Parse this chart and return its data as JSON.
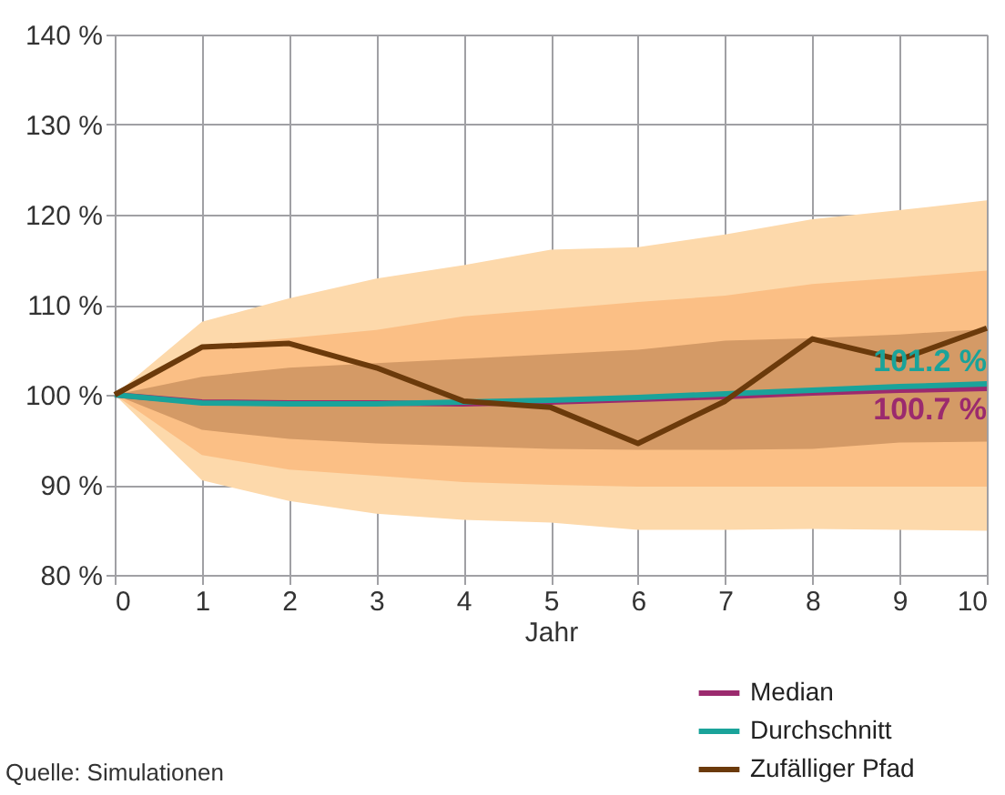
{
  "chart_data": {
    "type": "line",
    "xlabel": "Jahr",
    "x": [
      0,
      1,
      2,
      3,
      4,
      5,
      6,
      7,
      8,
      9,
      10
    ],
    "xlim": [
      0,
      10
    ],
    "xticks": [
      0,
      1,
      2,
      3,
      4,
      5,
      6,
      7,
      8,
      9,
      10
    ],
    "ylim": [
      80,
      140
    ],
    "yticks": [
      {
        "value": 80,
        "label": "80 %"
      },
      {
        "value": 90,
        "label": "90 %"
      },
      {
        "value": 100,
        "label": "100 %"
      },
      {
        "value": 110,
        "label": "110 %"
      },
      {
        "value": 120,
        "label": "120 %"
      },
      {
        "value": 130,
        "label": "130 %"
      },
      {
        "value": 140,
        "label": "140 %"
      }
    ],
    "grid": true,
    "legend": "bottom right",
    "line_style": "solid",
    "marker": "none",
    "series": [
      {
        "color": "#fdd9ab",
        "lower": [
          100,
          90.5,
          88.2,
          86.8,
          86.1,
          85.8,
          85,
          85,
          85.1,
          85,
          84.9
        ],
        "upper": [
          100,
          108.1,
          110.7,
          112.9,
          114.4,
          116.1,
          116.4,
          117.8,
          119.5,
          120.5,
          121.6
        ],
        "values": [
          null,
          null,
          null,
          null,
          null,
          null,
          null,
          null,
          null,
          null,
          null
        ]
      },
      {
        "color": "#fbbf85",
        "lower": [
          100,
          93.3,
          91.7,
          91,
          90.3,
          90,
          89.8,
          89.8,
          89.8,
          89.8,
          89.8
        ],
        "upper": [
          100,
          105.5,
          106.3,
          107.2,
          108.7,
          109.5,
          110.3,
          111,
          112.3,
          113,
          113.8
        ],
        "values": [
          null,
          null,
          null,
          null,
          null,
          null,
          null,
          null,
          null,
          null,
          null
        ]
      },
      {
        "color": "#d49a66",
        "lower": [
          100,
          96.1,
          95.1,
          94.6,
          94.3,
          94,
          93.9,
          93.9,
          94,
          94.7,
          94.8
        ],
        "upper": [
          100,
          102,
          103,
          103.5,
          104,
          104.5,
          105,
          106,
          106.3,
          106.7,
          107.3
        ],
        "values": [
          null,
          null,
          null,
          null,
          null,
          null,
          null,
          null,
          null,
          null,
          null
        ]
      },
      {
        "name": "Median",
        "color": "#9b2a6e",
        "values": [
          100,
          99.2,
          99.1,
          99.1,
          99.0,
          99.2,
          99.5,
          99.8,
          100.2,
          100.5,
          100.7
        ]
      },
      {
        "name": "Durchschnitt",
        "color": "#1aa39a",
        "values": [
          100,
          99.1,
          99.0,
          99.0,
          99.2,
          99.4,
          99.7,
          100.1,
          100.5,
          100.9,
          101.2
        ]
      },
      {
        "name": "Zufälliger Pfad",
        "color": "#6b3a0b",
        "values": [
          100,
          105.3,
          105.7,
          103,
          99.3,
          98.6,
          94.6,
          99.3,
          106.2,
          103.9,
          107.4
        ]
      }
    ],
    "annotations": [
      {
        "text": "101.2 %",
        "x": 10,
        "y": 101.2
      },
      {
        "text": "100.7 %",
        "x": 10,
        "y": 100.7
      },
      "Quelle: Simulationen"
    ]
  }
}
